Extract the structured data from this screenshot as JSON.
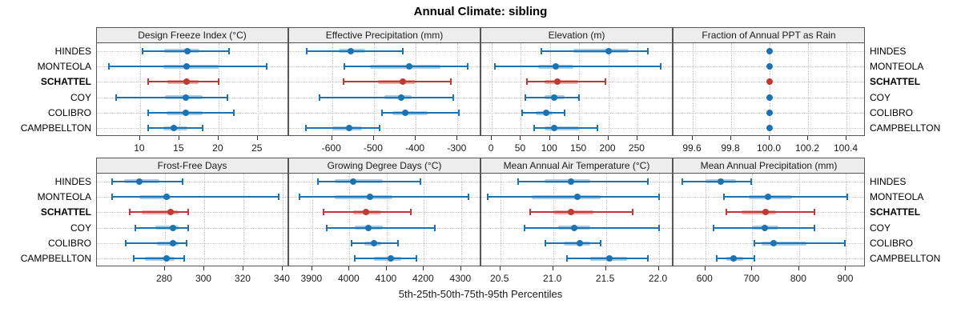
{
  "title": "Annual Climate: sibling",
  "caption": "5th-25th-50th-75th-95th Percentiles",
  "stations": [
    "HINDES",
    "MONTEOLA",
    "SCHATTEL",
    "COY",
    "COLIBRO",
    "CAMPBELLTON"
  ],
  "highlight_station": "SCHATTEL",
  "colors": {
    "series_blue": "#1c73b1",
    "series_blue_band": "#a9cbe5",
    "highlight_red": "#be3b33",
    "highlight_red_band": "#e9aca6",
    "grid": "#c9c9c9",
    "panel_border": "#555555",
    "header_bg": "#ededed",
    "text": "#1a1a1a"
  },
  "chart_data": {
    "type": "dotplot-interval",
    "note": "Each series value is [p5, p25, p50, p75, p95] percentiles per station; station order matches stations[]",
    "layout": {
      "rows": 2,
      "cols": 4,
      "legend": "none",
      "grid": "dotted"
    },
    "panels": [
      {
        "title": "Design Freeze Index (°C)",
        "ticks": [
          "10",
          "15",
          "20",
          "25"
        ],
        "domain": [
          4.5,
          29.0
        ],
        "series": [
          [
            10.3,
            13.1,
            16.0,
            17.6,
            21.3
          ],
          [
            6.0,
            13.0,
            15.9,
            20.0,
            26.1
          ],
          [
            11.0,
            13.5,
            15.9,
            17.5,
            20.0
          ],
          [
            7.0,
            13.2,
            15.8,
            18.0,
            21.1
          ],
          [
            11.0,
            13.4,
            15.8,
            18.0,
            22.0
          ],
          [
            11.0,
            13.0,
            14.3,
            16.0,
            18.0
          ]
        ]
      },
      {
        "title": "Effective Precipitation (mm)",
        "ticks": [
          "-600",
          "-500",
          "-400",
          "-300"
        ],
        "domain": [
          -703,
          -243
        ],
        "series": [
          [
            -660,
            -585,
            -555,
            -520,
            -430
          ],
          [
            -570,
            -510,
            -415,
            -340,
            -275
          ],
          [
            -572,
            -490,
            -430,
            -400,
            -315
          ],
          [
            -630,
            -475,
            -435,
            -410,
            -310
          ],
          [
            -480,
            -455,
            -426,
            -371,
            -296
          ],
          [
            -662,
            -600,
            -559,
            -528,
            -487
          ]
        ]
      },
      {
        "title": "Elevation (m)",
        "ticks": [
          "0",
          "50",
          "100",
          "150",
          "200",
          "250"
        ],
        "domain": [
          -18,
          312
        ],
        "series": [
          [
            85,
            140,
            200,
            235,
            268
          ],
          [
            5,
            80,
            110,
            140,
            290
          ],
          [
            60,
            90,
            113,
            148,
            195
          ],
          [
            57,
            90,
            107,
            125,
            150
          ],
          [
            52,
            75,
            93,
            105,
            125
          ],
          [
            73,
            90,
            107,
            150,
            182
          ]
        ]
      },
      {
        "title": "Fraction of Annual PPT as Rain",
        "ticks": [
          "99.6",
          "99.8",
          "100.0",
          "100.2",
          "100.4"
        ],
        "domain": [
          99.5,
          100.5
        ],
        "series": [
          [
            100,
            100,
            100,
            100,
            100
          ],
          [
            100,
            100,
            100,
            100,
            100
          ],
          [
            100,
            100,
            100,
            100,
            100
          ],
          [
            100,
            100,
            100,
            100,
            100
          ],
          [
            100,
            100,
            100,
            100,
            100
          ],
          [
            100,
            100,
            100,
            100,
            100
          ]
        ]
      },
      {
        "title": "Frost-Free Days",
        "ticks": [
          "280",
          "300",
          "320",
          "340"
        ],
        "domain": [
          245.3,
          343.3
        ],
        "series": [
          [
            253,
            259,
            267,
            277,
            289
          ],
          [
            253,
            267,
            281,
            283,
            338
          ],
          [
            262,
            268,
            283,
            287,
            292
          ],
          [
            265,
            275,
            284,
            287,
            292
          ],
          [
            260,
            276,
            284,
            287,
            291
          ],
          [
            264,
            270,
            281,
            285,
            290
          ]
        ]
      },
      {
        "title": "Growing Degree Days (°C)",
        "ticks": [
          "3900",
          "4000",
          "4100",
          "4200",
          "4300"
        ],
        "domain": [
          3838,
          4354
        ],
        "series": [
          [
            3915,
            3960,
            4010,
            4090,
            4190
          ],
          [
            3865,
            3960,
            4055,
            4115,
            4320
          ],
          [
            3930,
            4010,
            4045,
            4085,
            4165
          ],
          [
            3940,
            4015,
            4050,
            4090,
            4230
          ],
          [
            4005,
            4040,
            4065,
            4085,
            4130
          ],
          [
            4015,
            4065,
            4110,
            4140,
            4180
          ]
        ]
      },
      {
        "title": "Mean Annual Air Temperature (°C)",
        "ticks": [
          "20.5",
          "21.0",
          "21.5",
          "22.0"
        ],
        "domain": [
          20.32,
          22.14
        ],
        "series": [
          [
            20.67,
            20.92,
            21.17,
            21.35,
            21.9
          ],
          [
            20.38,
            20.8,
            21.23,
            21.45,
            22.0
          ],
          [
            20.78,
            21.0,
            21.17,
            21.38,
            21.75
          ],
          [
            20.73,
            21.05,
            21.2,
            21.35,
            22.0
          ],
          [
            20.93,
            21.1,
            21.25,
            21.35,
            21.45
          ],
          [
            21.13,
            21.35,
            21.53,
            21.7,
            21.9
          ]
        ]
      },
      {
        "title": "Mean Annual Precipitation (mm)",
        "ticks": [
          "600",
          "700",
          "800",
          "900"
        ],
        "domain": [
          532,
          942
        ],
        "series": [
          [
            550,
            600,
            633,
            665,
            697
          ],
          [
            640,
            693,
            733,
            785,
            903
          ],
          [
            645,
            678,
            728,
            750,
            832
          ],
          [
            618,
            700,
            727,
            755,
            832
          ],
          [
            705,
            720,
            745,
            815,
            897
          ],
          [
            625,
            645,
            660,
            680,
            705
          ]
        ]
      }
    ]
  }
}
